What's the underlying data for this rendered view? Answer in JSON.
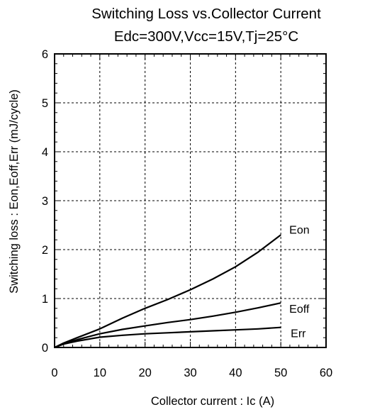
{
  "chart_data": {
    "type": "line",
    "title": "Switching Loss vs.Collector Current",
    "subtitle": "Edc=300V,Vcc=15V,Tj=25°C",
    "xlabel": "Collector current : Ic  (A)",
    "ylabel": "Switching loss : Eon,Eoff,Err  (mJ/cycle)",
    "xlim": [
      0,
      60
    ],
    "ylim": [
      0,
      6
    ],
    "xticks": [
      0,
      10,
      20,
      30,
      40,
      50,
      60
    ],
    "yticks": [
      0,
      1,
      2,
      3,
      4,
      5,
      6
    ],
    "grid": "dashed",
    "legend": "none (series labeled at line ends)",
    "line_color": "#000000",
    "series": [
      {
        "name": "Eon",
        "x": [
          0,
          2,
          5,
          10,
          15,
          20,
          25,
          30,
          35,
          40,
          45,
          50
        ],
        "y": [
          0,
          0.09,
          0.2,
          0.38,
          0.6,
          0.8,
          0.98,
          1.18,
          1.4,
          1.65,
          1.95,
          2.3
        ]
      },
      {
        "name": "Eoff",
        "x": [
          0,
          2,
          5,
          10,
          15,
          20,
          25,
          30,
          35,
          40,
          45,
          50
        ],
        "y": [
          0,
          0.08,
          0.16,
          0.28,
          0.37,
          0.44,
          0.51,
          0.57,
          0.64,
          0.72,
          0.81,
          0.91
        ]
      },
      {
        "name": "Err",
        "x": [
          0,
          2,
          5,
          10,
          15,
          20,
          25,
          30,
          35,
          40,
          45,
          50
        ],
        "y": [
          0,
          0.07,
          0.13,
          0.21,
          0.25,
          0.28,
          0.3,
          0.32,
          0.34,
          0.36,
          0.38,
          0.41
        ]
      }
    ]
  }
}
